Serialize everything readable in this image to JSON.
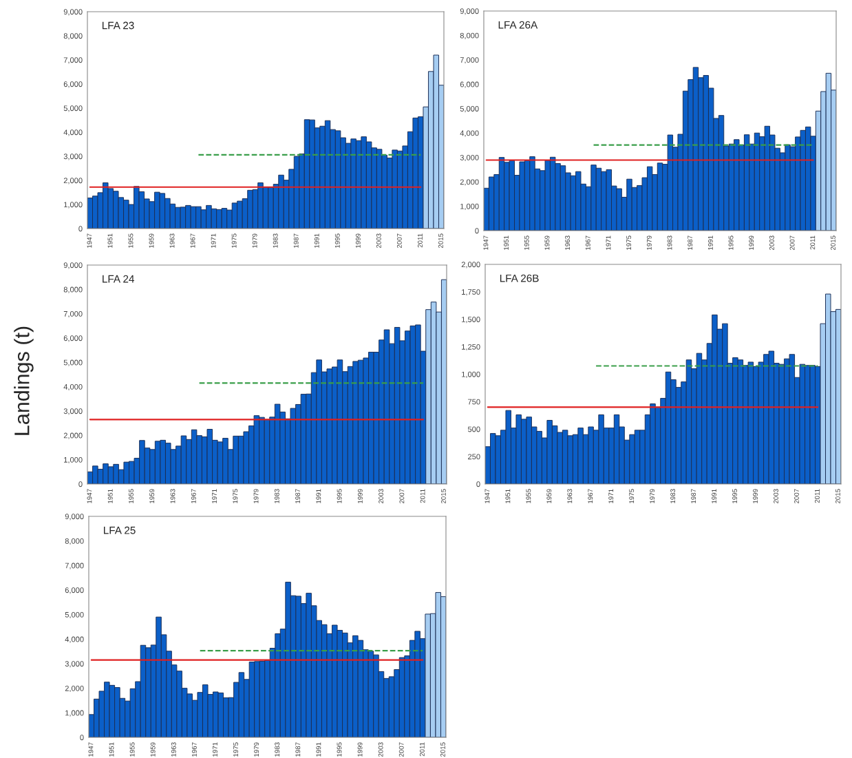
{
  "chart_data": [
    {
      "type": "bar",
      "title": "LFA 23",
      "xlim": [
        1946.5,
        2015.5
      ],
      "xticks": [
        1947,
        1951,
        1955,
        1959,
        1963,
        1967,
        1971,
        1975,
        1979,
        1983,
        1987,
        1991,
        1995,
        1999,
        2003,
        2007,
        2011,
        2015
      ],
      "ylim": [
        0,
        9000
      ],
      "yticks": [
        0,
        {
          "value": 1000,
          "label": "1,000"
        },
        {
          "value": 2000,
          "label": "2,000"
        },
        {
          "value": 3000,
          "label": "3,000"
        },
        {
          "value": 4000,
          "label": "4,000"
        },
        {
          "value": 5000,
          "label": "5,000"
        },
        {
          "value": 6000,
          "label": "6,000"
        },
        {
          "value": 7000,
          "label": "7,000"
        },
        {
          "value": 8000,
          "label": "8,000"
        },
        {
          "value": 9000,
          "label": "9,000"
        }
      ],
      "series": [
        {
          "color": "#0b5fc8",
          "x": [
            1947,
            1948,
            1949,
            1950,
            1951,
            1952,
            1953,
            1954,
            1955,
            1956,
            1957,
            1958,
            1959,
            1960,
            1961,
            1962,
            1963,
            1964,
            1965,
            1966,
            1967,
            1968,
            1969,
            1970,
            1971,
            1972,
            1973,
            1974,
            1975,
            1976,
            1977,
            1978,
            1979,
            1980,
            1981,
            1982,
            1983,
            1984,
            1985,
            1986,
            1987,
            1988,
            1989,
            1990,
            1991,
            1992,
            1993,
            1994,
            1995,
            1996,
            1997,
            1998,
            1999,
            2000,
            2001,
            2002,
            2003,
            2004,
            2005,
            2006,
            2007,
            2008,
            2009,
            2010,
            2011
          ],
          "values": [
            1270,
            1350,
            1490,
            1900,
            1660,
            1550,
            1290,
            1180,
            1000,
            1750,
            1530,
            1230,
            1120,
            1510,
            1460,
            1250,
            1020,
            880,
            890,
            960,
            910,
            910,
            780,
            960,
            820,
            790,
            840,
            770,
            1060,
            1140,
            1240,
            1590,
            1620,
            1900,
            1720,
            1710,
            1840,
            2220,
            2010,
            2460,
            3000,
            3100,
            4520,
            4510,
            4180,
            4250,
            4480,
            4110,
            4060,
            3770,
            3540,
            3720,
            3650,
            3810,
            3600,
            3350,
            3290,
            3050,
            2930,
            3260,
            3220,
            3430,
            4020,
            4590,
            4640
          ]
        },
        {
          "color": "#a6cdf2",
          "x": [
            2012,
            2013,
            2014,
            2015
          ],
          "values": [
            5050,
            6520,
            7200,
            5950
          ]
        },
        {
          "type": "line",
          "color": "#e02020",
          "line_style": "solid",
          "x": [
            1947,
            2011
          ],
          "values": [
            1720,
            1720
          ]
        },
        {
          "type": "line",
          "color": "#3a9e4a",
          "line_style": "dashed",
          "x": [
            1968,
            2011
          ],
          "values": [
            3060,
            3060
          ]
        }
      ]
    },
    {
      "type": "bar",
      "title": "LFA 26A",
      "xlim": [
        1946.5,
        2015.5
      ],
      "xticks": [
        1947,
        1951,
        1955,
        1959,
        1963,
        1967,
        1971,
        1975,
        1979,
        1983,
        1987,
        1991,
        1995,
        1999,
        2003,
        2007,
        2011,
        2015
      ],
      "ylim": [
        0,
        9000
      ],
      "yticks": [
        0,
        {
          "value": 1000,
          "label": "1,000"
        },
        {
          "value": 2000,
          "label": "2,000"
        },
        {
          "value": 3000,
          "label": "3,000"
        },
        {
          "value": 4000,
          "label": "4,000"
        },
        {
          "value": 5000,
          "label": "5,000"
        },
        {
          "value": 6000,
          "label": "6,000"
        },
        {
          "value": 7000,
          "label": "7,000"
        },
        {
          "value": 8000,
          "label": "8,000"
        },
        {
          "value": 9000,
          "label": "9,000"
        }
      ],
      "series": [
        {
          "color": "#0b5fc8",
          "x": [
            1947,
            1948,
            1949,
            1950,
            1951,
            1952,
            1953,
            1954,
            1955,
            1956,
            1957,
            1958,
            1959,
            1960,
            1961,
            1962,
            1963,
            1964,
            1965,
            1966,
            1967,
            1968,
            1969,
            1970,
            1971,
            1972,
            1973,
            1974,
            1975,
            1976,
            1977,
            1978,
            1979,
            1980,
            1981,
            1982,
            1983,
            1984,
            1985,
            1986,
            1987,
            1988,
            1989,
            1990,
            1991,
            1992,
            1993,
            1994,
            1995,
            1996,
            1997,
            1998,
            1999,
            2000,
            2001,
            2002,
            2003,
            2004,
            2005,
            2006,
            2007,
            2008,
            2009,
            2010,
            2011
          ],
          "values": [
            1740,
            2200,
            2300,
            3000,
            2800,
            2870,
            2270,
            2820,
            2870,
            3030,
            2530,
            2460,
            2880,
            3010,
            2750,
            2660,
            2370,
            2250,
            2420,
            1910,
            1800,
            2690,
            2560,
            2420,
            2500,
            1830,
            1720,
            1370,
            2110,
            1770,
            1850,
            2170,
            2620,
            2300,
            2770,
            2720,
            3920,
            3420,
            3950,
            5720,
            6190,
            6690,
            6270,
            6360,
            5840,
            4600,
            4720,
            3470,
            3550,
            3730,
            3510,
            3930,
            3550,
            4000,
            3850,
            4280,
            3920,
            3380,
            3190,
            3520,
            3440,
            3840,
            4110,
            4250,
            3870
          ]
        },
        {
          "color": "#a6cdf2",
          "x": [
            2012,
            2013,
            2014,
            2015
          ],
          "values": [
            4900,
            5700,
            6450,
            5760
          ]
        },
        {
          "type": "line",
          "color": "#e02020",
          "line_style": "solid",
          "x": [
            1947,
            2011
          ],
          "values": [
            2890,
            2890
          ]
        },
        {
          "type": "line",
          "color": "#3a9e4a",
          "line_style": "dashed",
          "x": [
            1968,
            2011
          ],
          "values": [
            3510,
            3510
          ]
        }
      ]
    },
    {
      "type": "bar",
      "title": "LFA 24",
      "ylabel": "Landings (t)",
      "xlim": [
        1946.5,
        2015.5
      ],
      "xticks": [
        1947,
        1951,
        1955,
        1959,
        1963,
        1967,
        1971,
        1975,
        1979,
        1983,
        1987,
        1991,
        1995,
        1999,
        2003,
        2007,
        2011,
        2015
      ],
      "ylim": [
        0,
        9000
      ],
      "yticks": [
        0,
        {
          "value": 1000,
          "label": "1,000"
        },
        {
          "value": 2000,
          "label": "2,000"
        },
        {
          "value": 3000,
          "label": "3,000"
        },
        {
          "value": 4000,
          "label": "4,000"
        },
        {
          "value": 5000,
          "label": "5,000"
        },
        {
          "value": 6000,
          "label": "6,000"
        },
        {
          "value": 7000,
          "label": "7,000"
        },
        {
          "value": 8000,
          "label": "8,000"
        },
        {
          "value": 9000,
          "label": "9,000"
        }
      ],
      "series": [
        {
          "color": "#0b5fc8",
          "x": [
            1947,
            1948,
            1949,
            1950,
            1951,
            1952,
            1953,
            1954,
            1955,
            1956,
            1957,
            1958,
            1959,
            1960,
            1961,
            1962,
            1963,
            1964,
            1965,
            1966,
            1967,
            1968,
            1969,
            1970,
            1971,
            1972,
            1973,
            1974,
            1975,
            1976,
            1977,
            1978,
            1979,
            1980,
            1981,
            1982,
            1983,
            1984,
            1985,
            1986,
            1987,
            1988,
            1989,
            1990,
            1991,
            1992,
            1993,
            1994,
            1995,
            1996,
            1997,
            1998,
            1999,
            2000,
            2001,
            2002,
            2003,
            2004,
            2005,
            2006,
            2007,
            2008,
            2009,
            2010,
            2011
          ],
          "values": [
            500,
            740,
            610,
            830,
            710,
            810,
            590,
            900,
            930,
            1060,
            1790,
            1480,
            1420,
            1760,
            1800,
            1680,
            1420,
            1560,
            1980,
            1830,
            2230,
            1990,
            1940,
            2250,
            1800,
            1730,
            1880,
            1420,
            1970,
            1970,
            2150,
            2390,
            2810,
            2740,
            2650,
            2750,
            3280,
            2960,
            2680,
            3110,
            3270,
            3690,
            3700,
            4580,
            5100,
            4610,
            4730,
            4810,
            5100,
            4620,
            4830,
            5040,
            5090,
            5180,
            5420,
            5420,
            5920,
            6340,
            5770,
            6440,
            5890,
            6290,
            6500,
            6540,
            5460
          ]
        },
        {
          "color": "#a6cdf2",
          "x": [
            2012,
            2013,
            2014,
            2015
          ],
          "values": [
            7170,
            7480,
            7070,
            8400
          ]
        },
        {
          "type": "line",
          "color": "#e02020",
          "line_style": "solid",
          "x": [
            1947,
            2011
          ],
          "values": [
            2650,
            2650
          ]
        },
        {
          "type": "line",
          "color": "#3a9e4a",
          "line_style": "dashed",
          "x": [
            1968,
            2011
          ],
          "values": [
            4150,
            4150
          ]
        }
      ]
    },
    {
      "type": "bar",
      "title": "LFA 26B",
      "xlim": [
        1946.5,
        2015.5
      ],
      "xticks": [
        1947,
        1951,
        1955,
        1959,
        1963,
        1967,
        1971,
        1975,
        1979,
        1983,
        1987,
        1991,
        1995,
        1999,
        2003,
        2007,
        2011,
        2015
      ],
      "ylim": [
        0,
        2000
      ],
      "yticks": [
        0,
        250,
        500,
        750,
        {
          "value": 1000,
          "label": "1,000"
        },
        {
          "value": 1250,
          "label": "1,250"
        },
        {
          "value": 1500,
          "label": "1,500"
        },
        {
          "value": 1750,
          "label": "1,750"
        },
        {
          "value": 2000,
          "label": "2,000"
        }
      ],
      "series": [
        {
          "color": "#0b5fc8",
          "x": [
            1947,
            1948,
            1949,
            1950,
            1951,
            1952,
            1953,
            1954,
            1955,
            1956,
            1957,
            1958,
            1959,
            1960,
            1961,
            1962,
            1963,
            1964,
            1965,
            1966,
            1967,
            1968,
            1969,
            1970,
            1971,
            1972,
            1973,
            1974,
            1975,
            1976,
            1977,
            1978,
            1979,
            1980,
            1981,
            1982,
            1983,
            1984,
            1985,
            1986,
            1987,
            1988,
            1989,
            1990,
            1991,
            1992,
            1993,
            1994,
            1995,
            1996,
            1997,
            1998,
            1999,
            2000,
            2001,
            2002,
            2003,
            2004,
            2005,
            2006,
            2007,
            2008,
            2009,
            2010,
            2011
          ],
          "values": [
            340,
            460,
            440,
            490,
            670,
            510,
            630,
            590,
            610,
            520,
            480,
            420,
            580,
            530,
            470,
            490,
            440,
            450,
            510,
            450,
            520,
            490,
            630,
            510,
            510,
            630,
            520,
            400,
            450,
            490,
            490,
            630,
            730,
            700,
            780,
            1020,
            950,
            880,
            930,
            1130,
            1050,
            1190,
            1130,
            1280,
            1540,
            1410,
            1460,
            1100,
            1150,
            1130,
            1080,
            1110,
            1070,
            1110,
            1180,
            1210,
            1100,
            1090,
            1140,
            1180,
            970,
            1090,
            1080,
            1080,
            1070
          ]
        },
        {
          "color": "#a6cdf2",
          "x": [
            2012,
            2013,
            2014,
            2015
          ],
          "values": [
            1460,
            1730,
            1570,
            1590
          ]
        },
        {
          "type": "line",
          "color": "#e02020",
          "line_style": "solid",
          "x": [
            1947,
            2011
          ],
          "values": [
            700,
            700
          ]
        },
        {
          "type": "line",
          "color": "#3a9e4a",
          "line_style": "dashed",
          "x": [
            1968,
            2011
          ],
          "values": [
            1075,
            1075
          ]
        }
      ]
    },
    {
      "type": "bar",
      "title": "LFA 25",
      "xlim": [
        1946.5,
        2015.5
      ],
      "xticks": [
        1947,
        1951,
        1955,
        1959,
        1963,
        1967,
        1971,
        1975,
        1979,
        1983,
        1987,
        1991,
        1995,
        1999,
        2003,
        2007,
        2011,
        2015
      ],
      "ylim": [
        0,
        9000
      ],
      "yticks": [
        0,
        {
          "value": 1000,
          "label": "1,000"
        },
        {
          "value": 2000,
          "label": "2,000"
        },
        {
          "value": 3000,
          "label": "3,000"
        },
        {
          "value": 4000,
          "label": "4,000"
        },
        {
          "value": 5000,
          "label": "5,000"
        },
        {
          "value": 6000,
          "label": "6,000"
        },
        {
          "value": 7000,
          "label": "7,000"
        },
        {
          "value": 8000,
          "label": "8,000"
        },
        {
          "value": 9000,
          "label": "9,000"
        }
      ],
      "series": [
        {
          "color": "#0b5fc8",
          "x": [
            1947,
            1948,
            1949,
            1950,
            1951,
            1952,
            1953,
            1954,
            1955,
            1956,
            1957,
            1958,
            1959,
            1960,
            1961,
            1962,
            1963,
            1964,
            1965,
            1966,
            1967,
            1968,
            1969,
            1970,
            1971,
            1972,
            1973,
            1974,
            1975,
            1976,
            1977,
            1978,
            1979,
            1980,
            1981,
            1982,
            1983,
            1984,
            1985,
            1986,
            1987,
            1988,
            1989,
            1990,
            1991,
            1992,
            1993,
            1994,
            1995,
            1996,
            1997,
            1998,
            1999,
            2000,
            2001,
            2002,
            2003,
            2004,
            2005,
            2006,
            2007,
            2008,
            2009,
            2010,
            2011
          ],
          "values": [
            930,
            1560,
            1880,
            2250,
            2120,
            2030,
            1590,
            1480,
            1980,
            2270,
            3750,
            3650,
            3760,
            4900,
            4180,
            3510,
            2950,
            2700,
            2000,
            1770,
            1510,
            1830,
            2140,
            1750,
            1850,
            1810,
            1610,
            1620,
            2240,
            2640,
            2360,
            3070,
            3090,
            3100,
            3140,
            3630,
            4220,
            4410,
            6320,
            5770,
            5750,
            5450,
            5870,
            5360,
            4760,
            4590,
            4220,
            4570,
            4360,
            4250,
            3850,
            4140,
            3950,
            3570,
            3510,
            3360,
            2680,
            2400,
            2470,
            2760,
            3250,
            3320,
            3950,
            4320,
            4020
          ]
        },
        {
          "color": "#a6cdf2",
          "x": [
            2012,
            2013,
            2014,
            2015
          ],
          "values": [
            5020,
            5040,
            5900,
            5730
          ]
        },
        {
          "type": "line",
          "color": "#e02020",
          "line_style": "solid",
          "x": [
            1947,
            2011
          ],
          "values": [
            3150,
            3150
          ]
        },
        {
          "type": "line",
          "color": "#3a9e4a",
          "line_style": "dashed",
          "x": [
            1968,
            2011
          ],
          "values": [
            3530,
            3530
          ]
        }
      ]
    }
  ]
}
